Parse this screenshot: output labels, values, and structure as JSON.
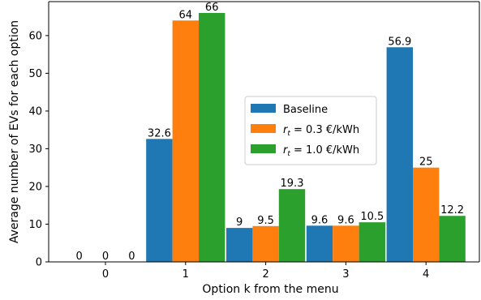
{
  "chart_data": {
    "type": "bar",
    "categories": [
      "0",
      "1",
      "2",
      "3",
      "4"
    ],
    "series": [
      {
        "name": "Baseline",
        "color": "#1f77b4",
        "values": [
          0,
          32.6,
          9,
          9.6,
          56.9
        ],
        "labels": [
          "0",
          "32.6",
          "9",
          "9.6",
          "56.9"
        ]
      },
      {
        "name": "r_t = 0.3 €/kWh",
        "color": "#ff7f0e",
        "values": [
          0,
          64,
          9.5,
          9.6,
          25
        ],
        "labels": [
          "0",
          "64",
          "9.5",
          "9.6",
          "25"
        ]
      },
      {
        "name": "r_t = 1.0 €/kWh",
        "color": "#2ca02c",
        "values": [
          0,
          66,
          19.3,
          10.5,
          12.2
        ],
        "labels": [
          "0",
          "66",
          "19.3",
          "10.5",
          "12.2"
        ]
      }
    ],
    "legend": {
      "placement": "center-right",
      "entries": [
        {
          "name": "Baseline"
        },
        {
          "name": "r_t = 0.3 €/kWh",
          "var": "r",
          "sub": "t",
          "rest": " = 0.3 €/kWh"
        },
        {
          "name": "r_t = 1.0 €/kWh",
          "var": "r",
          "sub": "t",
          "rest": " = 1.0 €/kWh"
        }
      ]
    },
    "xlabel": "Option k from the menu",
    "ylabel": "Average number of EVs for each option",
    "ylim": [
      0,
      69
    ],
    "yticks": [
      0,
      10,
      20,
      30,
      40,
      50,
      60
    ],
    "grid": false
  }
}
